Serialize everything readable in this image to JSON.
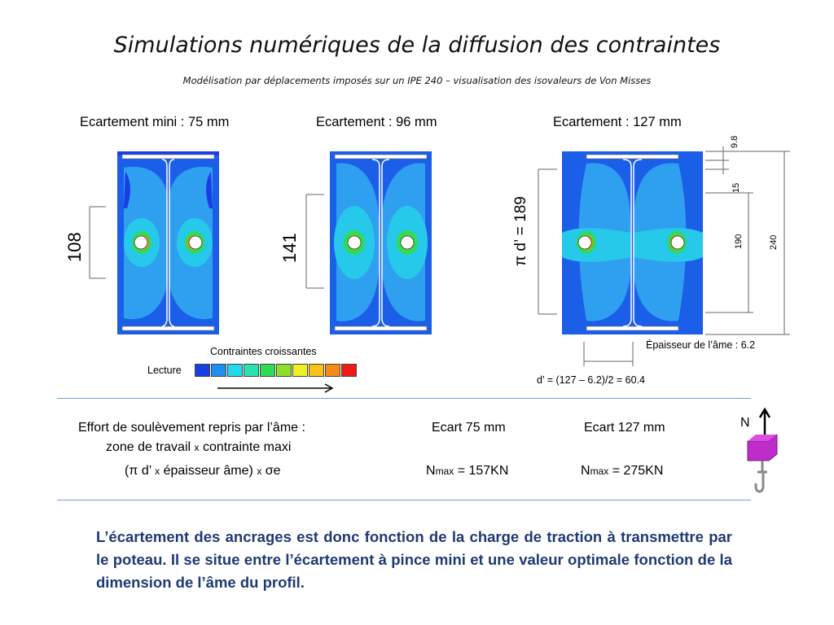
{
  "title": "Simulations numériques de la diffusion des contraintes",
  "subtitle": "Modélisation par déplacements imposés  sur un  IPE 240  – visualisation des isovaleurs de Von Misses",
  "simulations": [
    {
      "label": "Ecartement mini : 75 mm",
      "dimension": "108"
    },
    {
      "label": "Ecartement : 96 mm",
      "dimension": "141"
    },
    {
      "label": "Ecartement : 127 mm",
      "dimension": "π  d’ = 189"
    }
  ],
  "profile_dims": {
    "flange": "9.8",
    "radius": "15",
    "web_height": "190",
    "height": "240",
    "web_thickness_note": "Épaisseur de l’âme : 6.2",
    "d_formula": "d’ = (127 – 6.2)/2 = 60.4"
  },
  "legend": {
    "title": "Contraintes croissantes",
    "label": "Lecture",
    "colors": [
      "#1a3ee6",
      "#1d8ff0",
      "#23d8ef",
      "#27e3b0",
      "#2edc55",
      "#8de02a",
      "#f1ef21",
      "#f7c21a",
      "#f58a17",
      "#ef1b16"
    ]
  },
  "table": {
    "row1_left": "Effort de soulèvement repris par l’âme :",
    "row1_left_line2_a": "zone de travail",
    "row1_left_line2_x": "x",
    "row1_left_line2_b": "contrainte maxi",
    "col1_header": "Ecart 75 mm",
    "col2_header": "Ecart 127 mm",
    "row2_left_a": "(π d’",
    "row2_left_x1": "x",
    "row2_left_b": "épaisseur âme)",
    "row2_left_x2": "x",
    "row2_left_c": "σe",
    "n_label": "N",
    "n_sub": "max",
    "col1_value": "= 157KN",
    "col2_value": "=  275KN"
  },
  "force_label": "N",
  "conclusion": "L’écartement des ancrages est donc fonction de la charge de traction à transmettre par le poteau. Il se situe entre l’écartement à pince mini et une valeur optimale fonction de la dimension de l’âme du profil."
}
